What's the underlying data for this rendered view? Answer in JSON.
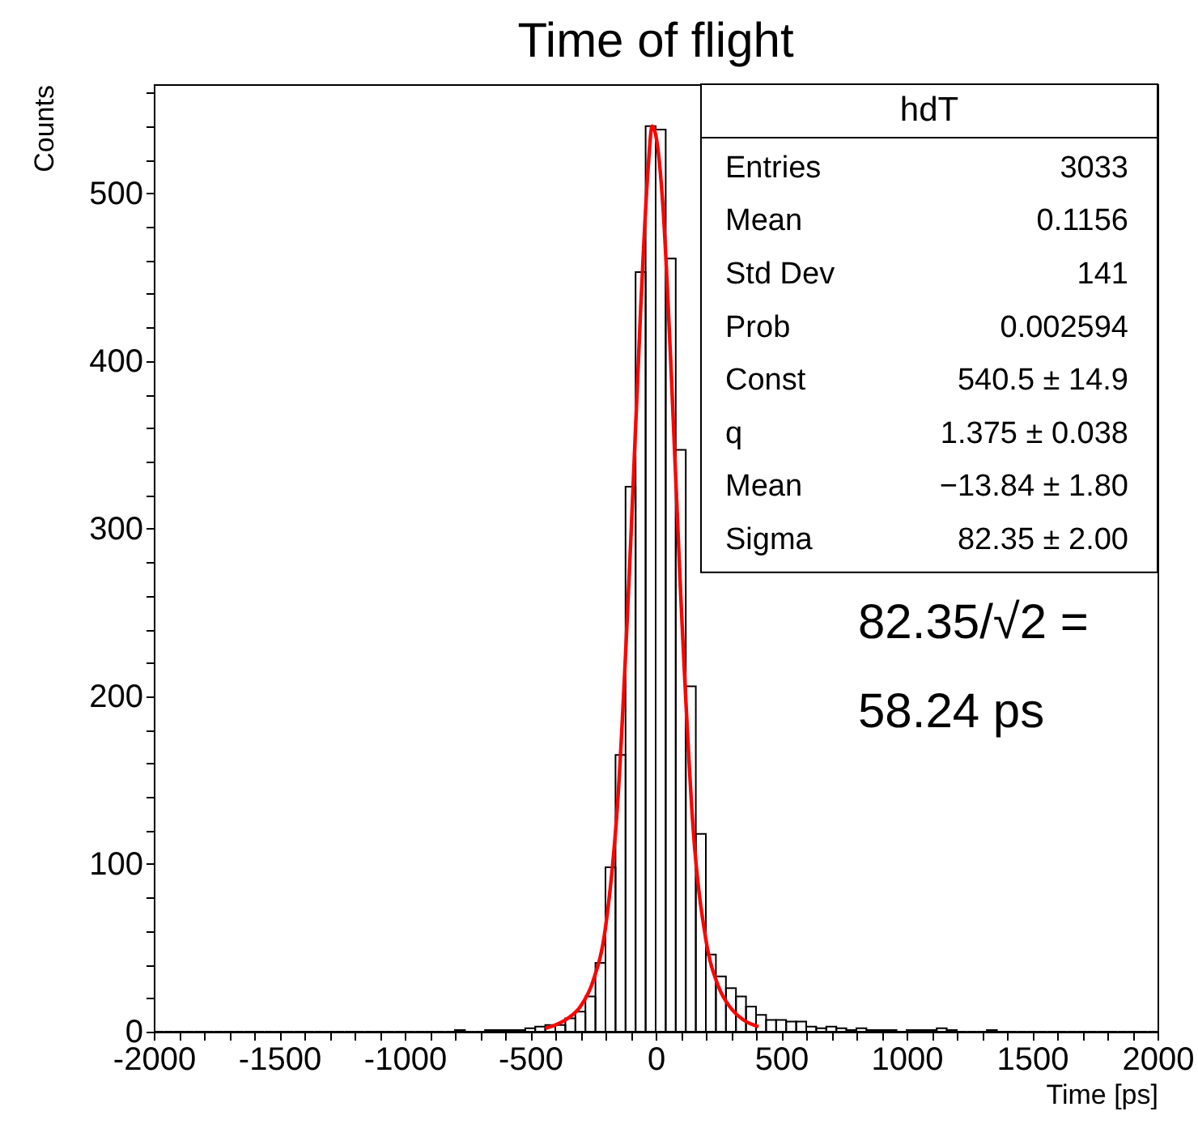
{
  "chart_data": {
    "type": "histogram",
    "title": "Time of flight",
    "xlabel": "Time [ps]",
    "ylabel": "Counts",
    "bins": [
      -2000,
      -1960,
      -1920,
      -1880,
      -1840,
      -1800,
      -1760,
      -1720,
      -1680,
      -1640,
      -1600,
      -1560,
      -1520,
      -1480,
      -1440,
      -1400,
      -1360,
      -1320,
      -1280,
      -1240,
      -1200,
      -1160,
      -1120,
      -1080,
      -1040,
      -1000,
      -960,
      -920,
      -880,
      -840,
      -800,
      -760,
      -720,
      -680,
      -640,
      -600,
      -560,
      -520,
      -480,
      -440,
      -400,
      -360,
      -320,
      -280,
      -240,
      -200,
      -160,
      -120,
      -80,
      -40,
      0,
      40,
      80,
      120,
      160,
      200,
      240,
      280,
      320,
      360,
      400,
      440,
      480,
      520,
      560,
      600,
      640,
      680,
      720,
      760,
      800,
      840,
      880,
      920,
      960,
      1000,
      1040,
      1080,
      1120,
      1160,
      1200,
      1240,
      1280,
      1320,
      1360,
      1400,
      1440,
      1480,
      1520,
      1560,
      1600,
      1640,
      1680,
      1720,
      1760,
      1800,
      1840,
      1880,
      1920,
      1960,
      2000
    ],
    "values": [
      0,
      0,
      0,
      0,
      0,
      0,
      0,
      0,
      0,
      0,
      0,
      0,
      0,
      0,
      0,
      0,
      0,
      0,
      0,
      0,
      0,
      0,
      0,
      0,
      0,
      0,
      0,
      0,
      0,
      0,
      1,
      0,
      0,
      1,
      1,
      1,
      1,
      2,
      3,
      4,
      4,
      8,
      12,
      21,
      41,
      98,
      165,
      325,
      453,
      540,
      538,
      461,
      347,
      206,
      118,
      46,
      33,
      26,
      21,
      15,
      10,
      7,
      7,
      6,
      6,
      3,
      2,
      3,
      2,
      1,
      2,
      1,
      1,
      1,
      0,
      1,
      1,
      1,
      2,
      1,
      0,
      0,
      0,
      1,
      0,
      0,
      0,
      0,
      0,
      0,
      0,
      0,
      0,
      0,
      0,
      0,
      0,
      0,
      0,
      0
    ],
    "color": "#000000",
    "series": [
      {
        "type": "line",
        "color": "#ff0000",
        "x": [
          -440,
          -400,
          -350,
          -300,
          -250,
          -200,
          -150,
          -100,
          -60,
          -30,
          -14,
          0,
          30,
          60,
          100,
          150,
          200,
          250,
          300,
          350,
          410
        ],
        "values": [
          2,
          4,
          8,
          15,
          30,
          62,
          140,
          290,
          430,
          515,
          540,
          535,
          490,
          400,
          260,
          120,
          55,
          27,
          14,
          7,
          3
        ]
      }
    ],
    "xlim": [
      -2000,
      2000
    ],
    "ylim": [
      0,
      565
    ],
    "xticks": [
      -2000,
      {
        "value": -1900,
        "label": null
      },
      {
        "value": -1800,
        "label": null
      },
      {
        "value": -1700,
        "label": null
      },
      {
        "value": -1600,
        "label": null
      },
      -1500,
      {
        "value": -1400,
        "label": null
      },
      {
        "value": -1300,
        "label": null
      },
      {
        "value": -1200,
        "label": null
      },
      {
        "value": -1100,
        "label": null
      },
      -1000,
      {
        "value": -900,
        "label": null
      },
      {
        "value": -800,
        "label": null
      },
      {
        "value": -700,
        "label": null
      },
      {
        "value": -600,
        "label": null
      },
      -500,
      {
        "value": -400,
        "label": null
      },
      {
        "value": -300,
        "label": null
      },
      {
        "value": -200,
        "label": null
      },
      {
        "value": -100,
        "label": null
      },
      0,
      {
        "value": 100,
        "label": null
      },
      {
        "value": 200,
        "label": null
      },
      {
        "value": 300,
        "label": null
      },
      {
        "value": 400,
        "label": null
      },
      500,
      {
        "value": 600,
        "label": null
      },
      {
        "value": 700,
        "label": null
      },
      {
        "value": 800,
        "label": null
      },
      {
        "value": 900,
        "label": null
      },
      1000,
      {
        "value": 1100,
        "label": null
      },
      {
        "value": 1200,
        "label": null
      },
      {
        "value": 1300,
        "label": null
      },
      {
        "value": 1400,
        "label": null
      },
      1500,
      {
        "value": 1600,
        "label": null
      },
      {
        "value": 1700,
        "label": null
      },
      {
        "value": 1800,
        "label": null
      },
      {
        "value": 1900,
        "label": null
      },
      2000
    ],
    "yticks": [
      0,
      {
        "value": 20,
        "label": null
      },
      {
        "value": 40,
        "label": null
      },
      {
        "value": 60,
        "label": null
      },
      {
        "value": 80,
        "label": null
      },
      100,
      {
        "value": 120,
        "label": null
      },
      {
        "value": 140,
        "label": null
      },
      {
        "value": 160,
        "label": null
      },
      {
        "value": 180,
        "label": null
      },
      200,
      {
        "value": 220,
        "label": null
      },
      {
        "value": 240,
        "label": null
      },
      {
        "value": 260,
        "label": null
      },
      {
        "value": 280,
        "label": null
      },
      300,
      {
        "value": 320,
        "label": null
      },
      {
        "value": 340,
        "label": null
      },
      {
        "value": 360,
        "label": null
      },
      {
        "value": 380,
        "label": null
      },
      400,
      {
        "value": 420,
        "label": null
      },
      {
        "value": 440,
        "label": null
      },
      {
        "value": 460,
        "label": null
      },
      {
        "value": 480,
        "label": null
      },
      500,
      {
        "value": 520,
        "label": null
      },
      {
        "value": 540,
        "label": null
      },
      {
        "value": 560,
        "label": null
      }
    ],
    "grid": false,
    "annotations": [
      "hdT",
      "Entries",
      "3033",
      "Mean",
      "0.1156",
      "Std Dev",
      "141",
      "Prob",
      "0.002594",
      "Const",
      "540.5 ± 14.9",
      "q",
      "1.375 ± 0.038",
      "Mean",
      "−13.84 ± 1.80",
      "Sigma",
      "82.35 ± 2.00",
      "82.35/√2 =\n58.24 ps"
    ]
  }
}
